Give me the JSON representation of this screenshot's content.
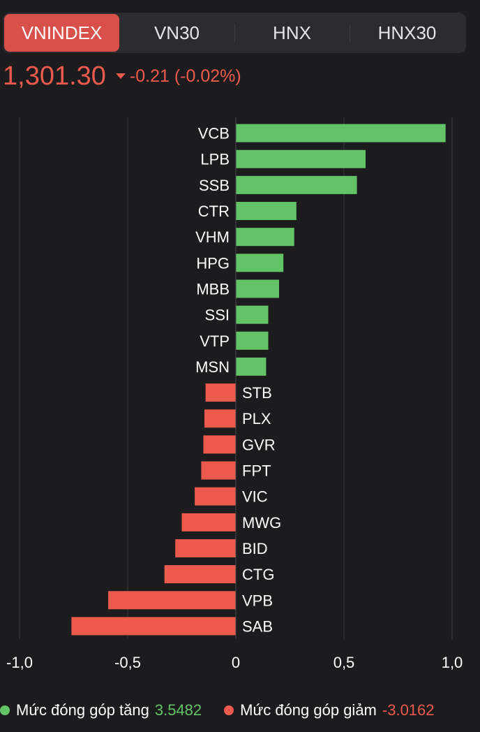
{
  "tabs": [
    {
      "label": "VNINDEX",
      "active": true
    },
    {
      "label": "VN30",
      "active": false
    },
    {
      "label": "HNX",
      "active": false
    },
    {
      "label": "HNX30",
      "active": false
    }
  ],
  "quote": {
    "price": "1,301.30",
    "change": "-0.21 (-0.02%)",
    "direction": "down",
    "color": "#ec5a4d"
  },
  "colors": {
    "positive": "#62c466",
    "negative": "#ec5a4d",
    "active_tab": "#d9504a",
    "background": "#1c1c1e",
    "grid": "#3a3a3c"
  },
  "chart_data": {
    "type": "bar",
    "orientation": "horizontal",
    "categories": [
      "VCB",
      "LPB",
      "SSB",
      "CTR",
      "VHM",
      "HPG",
      "MBB",
      "SSI",
      "VTP",
      "MSN",
      "STB",
      "PLX",
      "GVR",
      "FPT",
      "VIC",
      "MWG",
      "BID",
      "CTG",
      "VPB",
      "SAB"
    ],
    "values": [
      0.97,
      0.6,
      0.56,
      0.28,
      0.27,
      0.22,
      0.2,
      0.15,
      0.15,
      0.14,
      -0.14,
      -0.145,
      -0.15,
      -0.16,
      -0.19,
      -0.25,
      -0.28,
      -0.33,
      -0.59,
      -0.76
    ],
    "xlim": [
      -1.0,
      1.0
    ],
    "xticks": [
      -1.0,
      -0.5,
      0,
      0.5,
      1.0
    ],
    "xtick_labels": [
      "-1,0",
      "-0,5",
      "0",
      "0,5",
      "1,0"
    ],
    "grid": true
  },
  "legend": {
    "up_label": "Mức đóng góp tăng",
    "up_value": "3.5482",
    "down_label": "Mức đóng góp giảm",
    "down_value": "-3.0162"
  }
}
